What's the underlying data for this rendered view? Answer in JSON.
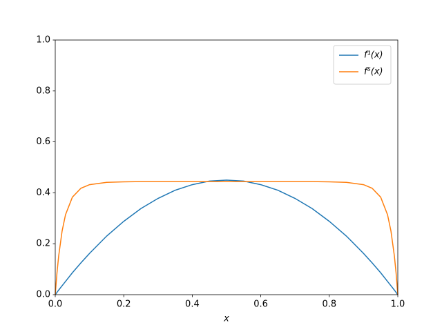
{
  "chart_data": {
    "type": "line",
    "xlabel": "x",
    "x": [
      0,
      0.005,
      0.01,
      0.02,
      0.03,
      0.05,
      0.075,
      0.1,
      0.15,
      0.2,
      0.25,
      0.3,
      0.35,
      0.4,
      0.45,
      0.5,
      0.55,
      0.6,
      0.65,
      0.7,
      0.75,
      0.8,
      0.85,
      0.9,
      0.925,
      0.95,
      0.97,
      0.98,
      0.99,
      0.995,
      1
    ],
    "series": [
      {
        "name": "f¹(x)",
        "color": "#1f77b4",
        "values": [
          0,
          0.009,
          0.018,
          0.035,
          0.052,
          0.086,
          0.125,
          0.162,
          0.23,
          0.288,
          0.338,
          0.378,
          0.41,
          0.432,
          0.446,
          0.45,
          0.446,
          0.432,
          0.41,
          0.378,
          0.338,
          0.288,
          0.23,
          0.162,
          0.125,
          0.086,
          0.052,
          0.035,
          0.018,
          0.009,
          0
        ]
      },
      {
        "name": "f⁵(x)",
        "color": "#ff7f0e",
        "values": [
          0,
          0.085,
          0.152,
          0.25,
          0.314,
          0.383,
          0.418,
          0.432,
          0.441,
          0.443,
          0.444,
          0.444,
          0.444,
          0.444,
          0.444,
          0.444,
          0.444,
          0.444,
          0.444,
          0.444,
          0.444,
          0.443,
          0.441,
          0.432,
          0.418,
          0.383,
          0.314,
          0.25,
          0.152,
          0.085,
          0
        ]
      }
    ],
    "xlim": [
      0,
      1
    ],
    "ylim": [
      0,
      1
    ],
    "xticks": [
      {
        "value": 0,
        "label": "0.0"
      },
      0.2,
      0.4,
      0.6,
      0.8,
      {
        "value": 1,
        "label": "1.0"
      }
    ],
    "yticks": [
      {
        "value": 0,
        "label": "0.0"
      },
      0.2,
      0.4,
      0.6,
      0.8,
      {
        "value": 1,
        "label": "1.0"
      }
    ],
    "legend": "upper right"
  }
}
